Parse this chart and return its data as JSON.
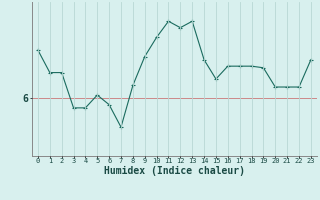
{
  "xlabel": "Humidex (Indice chaleur)",
  "x": [
    0,
    1,
    2,
    3,
    4,
    5,
    6,
    7,
    8,
    9,
    10,
    11,
    12,
    13,
    14,
    15,
    16,
    17,
    18,
    19,
    20,
    21,
    22,
    23
  ],
  "y": [
    7.5,
    6.8,
    6.8,
    5.7,
    5.7,
    6.1,
    5.8,
    5.1,
    6.4,
    7.3,
    7.9,
    8.4,
    8.2,
    8.4,
    7.2,
    6.6,
    7.0,
    7.0,
    7.0,
    6.95,
    6.35,
    6.35,
    6.35,
    7.2
  ],
  "line_color": "#1a6b5e",
  "marker": "+",
  "marker_size": 3,
  "bg_color": "#d8f0ee",
  "grid_color": "#b8d8d4",
  "hline_y": 6,
  "hline_color": "#cc8888",
  "ytick_label": "6",
  "ytick_val": 6,
  "ylim": [
    4.2,
    9.0
  ],
  "xlim": [
    -0.5,
    23.5
  ],
  "xlabel_fontsize": 7,
  "xtick_fontsize": 5,
  "ytick_fontsize": 7
}
